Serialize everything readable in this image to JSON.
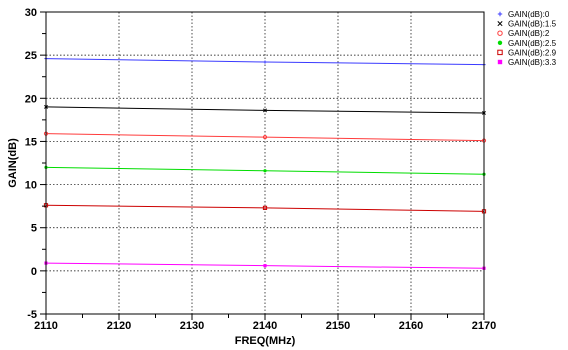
{
  "chart_data": {
    "type": "line",
    "title": "",
    "xlabel": "FREQ(MHz)",
    "ylabel": "GAIN(dB)",
    "xlim": [
      2110,
      2170
    ],
    "ylim": [
      -5,
      30
    ],
    "x_ticks": [
      2110,
      2120,
      2130,
      2140,
      2150,
      2160,
      2170
    ],
    "y_ticks": [
      -5,
      0,
      5,
      10,
      15,
      20,
      25,
      30
    ],
    "grid": true,
    "legend_position": "top-right, outside plot",
    "x": [
      2110,
      2140,
      2170
    ],
    "series": [
      {
        "name": "GAIN(dB):0",
        "color": "#3b3bff",
        "marker": "plus",
        "values": [
          24.6,
          24.2,
          23.9
        ]
      },
      {
        "name": "GAIN(dB):1.5",
        "color": "#000000",
        "marker": "x",
        "values": [
          19.0,
          18.6,
          18.3
        ]
      },
      {
        "name": "GAIN(dB):2",
        "color": "#ff3b3b",
        "marker": "open-circle",
        "values": [
          15.9,
          15.5,
          15.1
        ]
      },
      {
        "name": "GAIN(dB):2.5",
        "color": "#00dd00",
        "marker": "filled-circle",
        "values": [
          12.0,
          11.6,
          11.2
        ]
      },
      {
        "name": "GAIN(dB):2.9",
        "color": "#cc0000",
        "marker": "open-square",
        "values": [
          7.6,
          7.3,
          6.9
        ]
      },
      {
        "name": "GAIN(dB):3.3",
        "color": "#ff00ff",
        "marker": "filled-square",
        "values": [
          0.9,
          0.6,
          0.3
        ]
      }
    ]
  }
}
